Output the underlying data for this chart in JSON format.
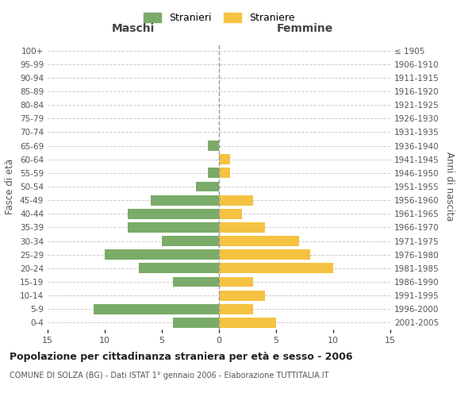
{
  "age_groups": [
    "0-4",
    "5-9",
    "10-14",
    "15-19",
    "20-24",
    "25-29",
    "30-34",
    "35-39",
    "40-44",
    "45-49",
    "50-54",
    "55-59",
    "60-64",
    "65-69",
    "70-74",
    "75-79",
    "80-84",
    "85-89",
    "90-94",
    "95-99",
    "100+"
  ],
  "birth_years": [
    "2001-2005",
    "1996-2000",
    "1991-1995",
    "1986-1990",
    "1981-1985",
    "1976-1980",
    "1971-1975",
    "1966-1970",
    "1961-1965",
    "1956-1960",
    "1951-1955",
    "1946-1950",
    "1941-1945",
    "1936-1940",
    "1931-1935",
    "1926-1930",
    "1921-1925",
    "1916-1920",
    "1911-1915",
    "1906-1910",
    "≤ 1905"
  ],
  "males": [
    4,
    11,
    0,
    4,
    7,
    10,
    5,
    8,
    8,
    6,
    2,
    1,
    0,
    1,
    0,
    0,
    0,
    0,
    0,
    0,
    0
  ],
  "females": [
    5,
    3,
    4,
    3,
    10,
    8,
    7,
    4,
    2,
    3,
    0,
    1,
    1,
    0,
    0,
    0,
    0,
    0,
    0,
    0,
    0
  ],
  "male_color": "#7aab68",
  "female_color": "#f5c242",
  "title": "Popolazione per cittadinanza straniera per età e sesso - 2006",
  "subtitle": "COMUNE DI SOLZA (BG) - Dati ISTAT 1° gennaio 2006 - Elaborazione TUTTITALIA.IT",
  "left_label": "Maschi",
  "right_label": "Femmine",
  "ylabel_left": "Fasce di età",
  "ylabel_right": "Anni di nascita",
  "legend_male": "Stranieri",
  "legend_female": "Straniere",
  "xlim": 15,
  "background_color": "#ffffff",
  "grid_color": "#cccccc"
}
